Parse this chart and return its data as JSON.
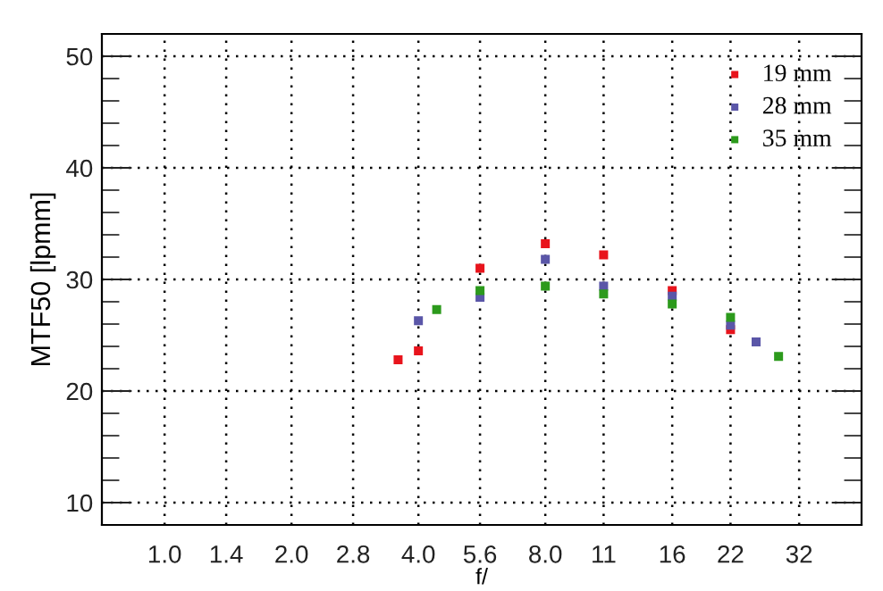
{
  "chart_data": {
    "type": "scatter",
    "xlabel": "f/",
    "ylabel": "MTF50 [lpmm]",
    "log": "x",
    "marker": "square",
    "grid": true,
    "legend": "top right",
    "xlim": [
      0.71,
      45
    ],
    "ylim": [
      8,
      52
    ],
    "xticks": [
      {
        "value": 1,
        "label": "1.0"
      },
      1.4,
      {
        "value": 2,
        "label": "2.0"
      },
      2.8,
      {
        "value": 4,
        "label": "4.0"
      },
      5.6,
      {
        "value": 8,
        "label": "8.0"
      },
      11,
      16,
      22,
      32
    ],
    "yticks": [
      10,
      20,
      30,
      40,
      50
    ],
    "series": [
      {
        "name": "19 mm",
        "color": "#e8141c",
        "x": [
          3.58,
          4,
          5.6,
          8,
          11,
          16,
          22
        ],
        "values": [
          22.8,
          23.6,
          31.0,
          33.2,
          32.2,
          29.0,
          25.5
        ]
      },
      {
        "name": "28 mm",
        "color": "#5a56a8",
        "x": [
          4,
          5.6,
          8,
          11,
          16,
          22,
          25.3
        ],
        "values": [
          26.3,
          28.4,
          31.8,
          29.4,
          28.5,
          25.9,
          24.4
        ]
      },
      {
        "name": "35 mm",
        "color": "#2c9a1c",
        "x": [
          4.42,
          5.6,
          8,
          11,
          16,
          22,
          28.6
        ],
        "values": [
          27.3,
          29.0,
          29.4,
          28.7,
          27.8,
          26.6,
          23.1
        ]
      }
    ]
  }
}
